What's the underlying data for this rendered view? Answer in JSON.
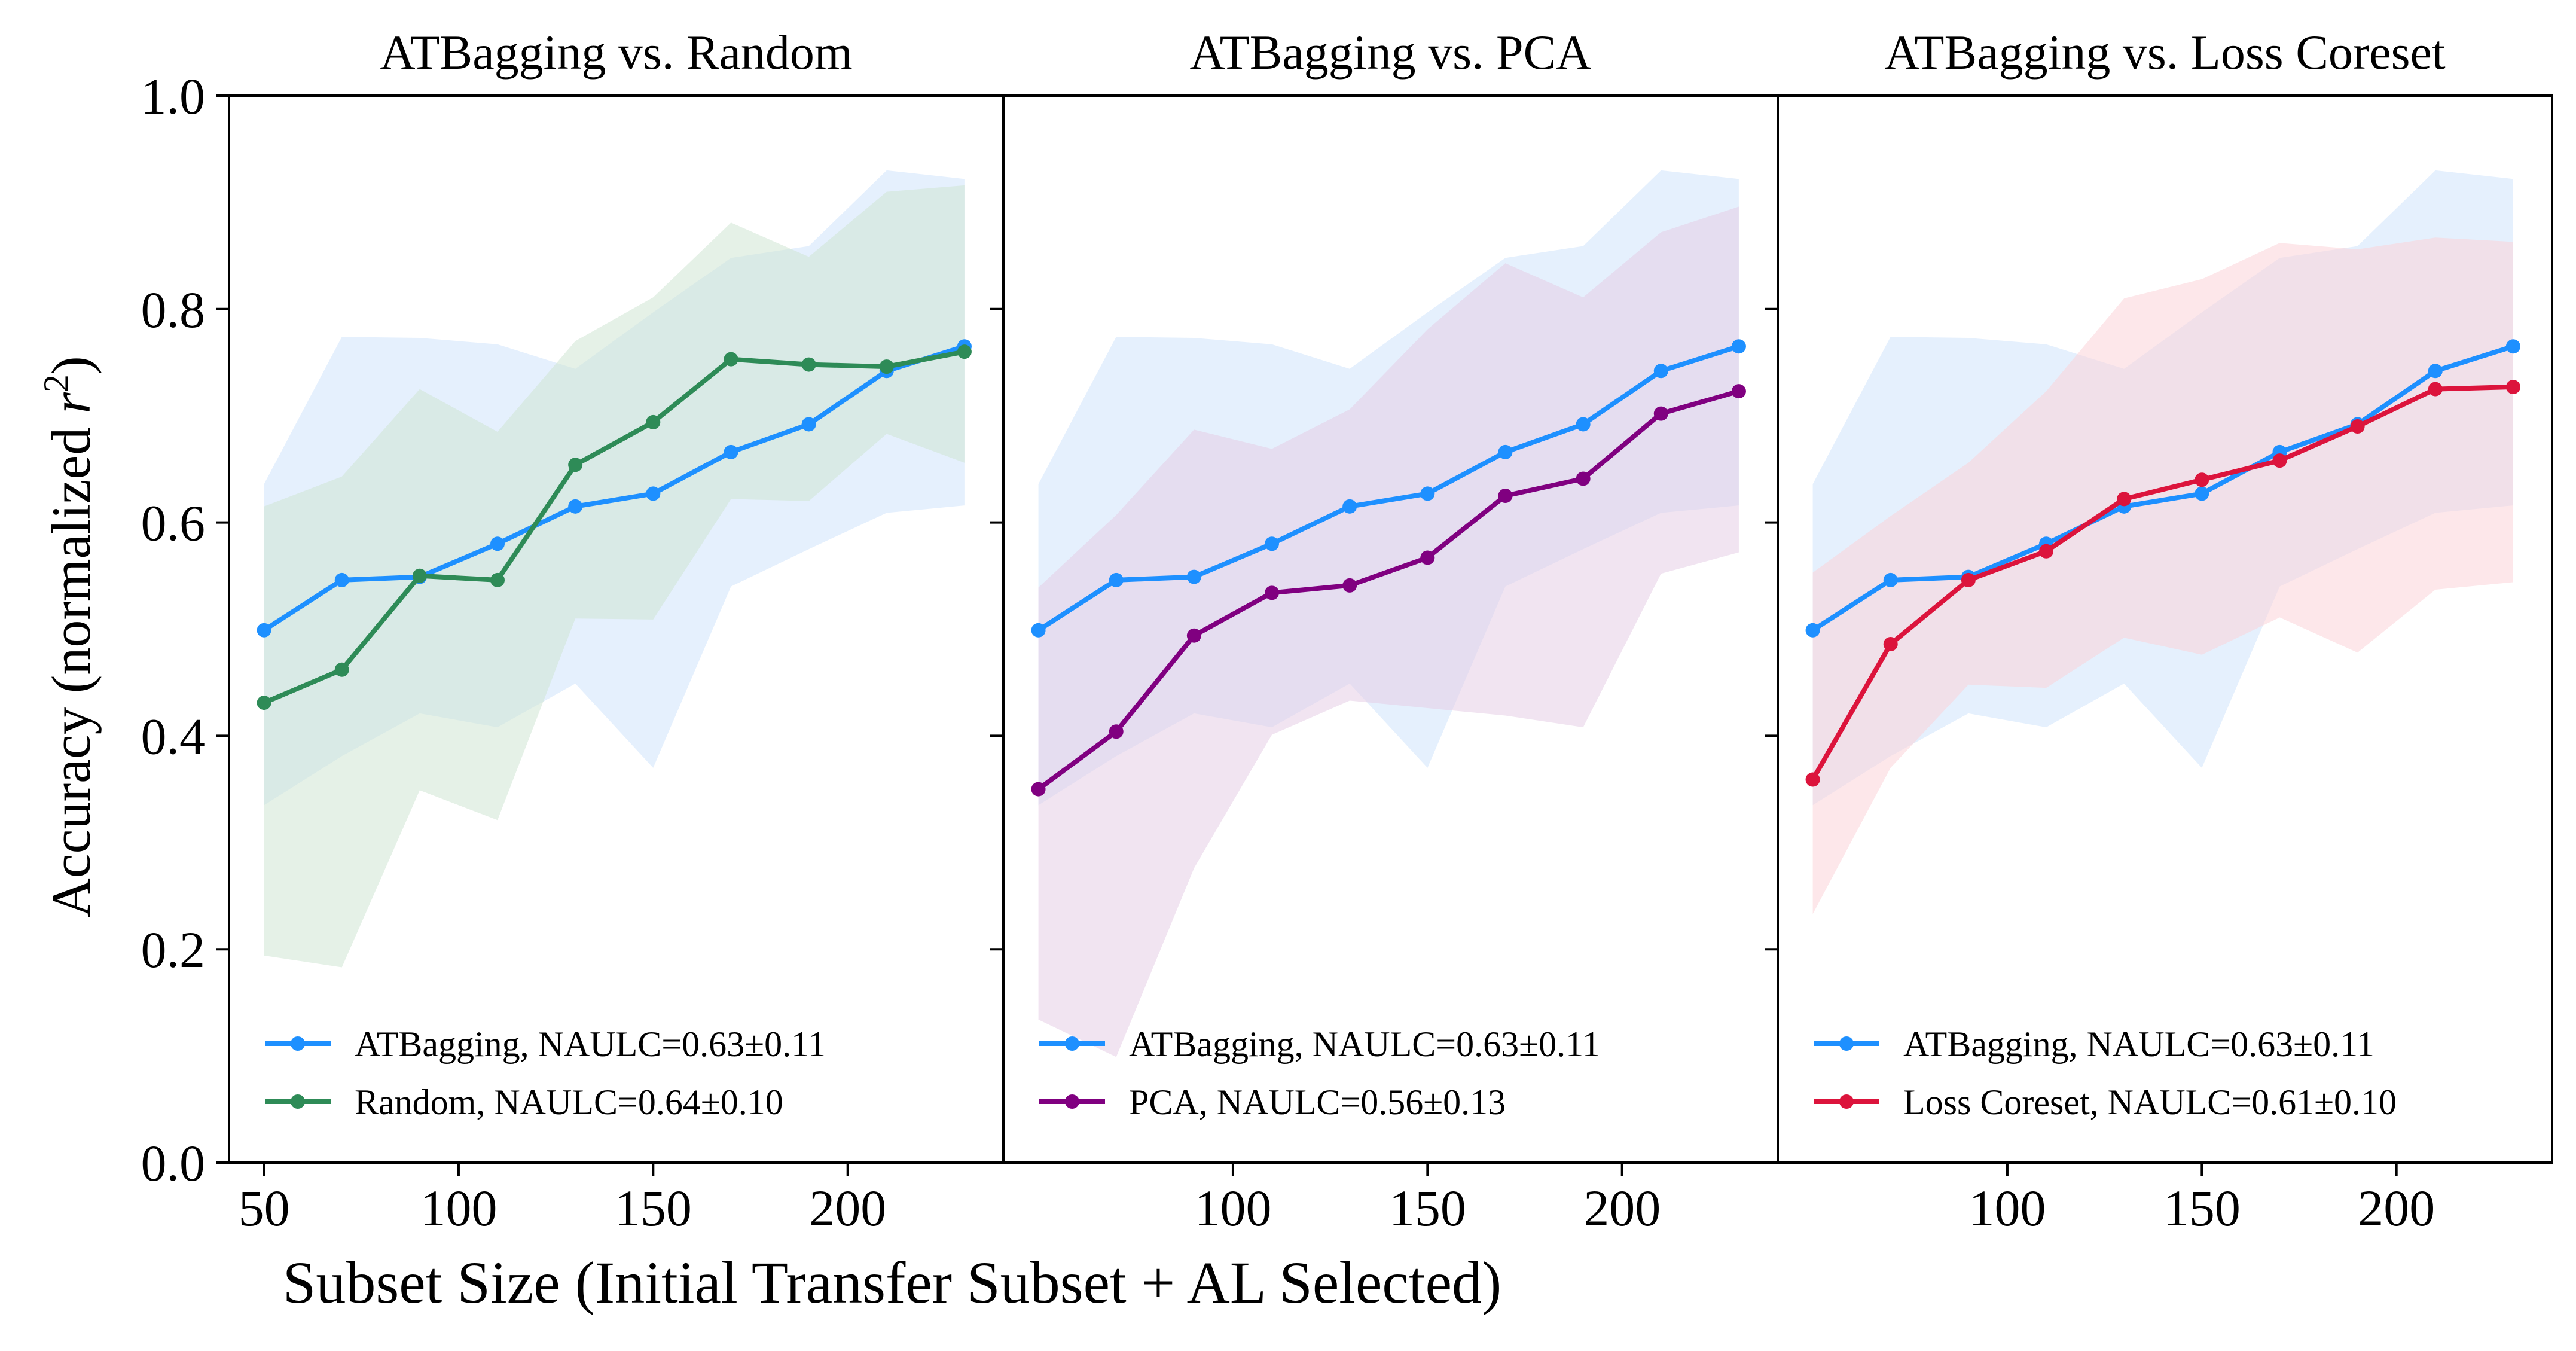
{
  "figure": {
    "ylabel_main": "Accuracy (normalized ",
    "ylabel_var": "r",
    "ylabel_sup": "2",
    "ylabel_end": ")",
    "xlabel": "Subset Size (Initial Transfer Subset + AL Selected)"
  },
  "chart_data": [
    {
      "type": "line",
      "title": "ATBagging vs. Random",
      "x": [
        50,
        70,
        90,
        110,
        130,
        150,
        170,
        190,
        210,
        230
      ],
      "xticks": [
        "50",
        "100",
        "150",
        "200"
      ],
      "xtick_values": [
        50,
        100,
        150,
        200
      ],
      "yticks": [
        "0.0",
        "0.2",
        "0.4",
        "0.6",
        "0.8",
        "1.0"
      ],
      "ylim": [
        0,
        1
      ],
      "xlim": [
        41,
        240
      ],
      "series": [
        {
          "name": "ATBagging",
          "legend": "ATBagging, NAULC=0.63±0.11",
          "color": "#1e90ff",
          "band_color": "#cfe3fb",
          "values": [
            0.499,
            0.546,
            0.549,
            0.58,
            0.615,
            0.627,
            0.666,
            0.692,
            0.742,
            0.765
          ],
          "lower": [
            0.335,
            0.381,
            0.421,
            0.408,
            0.449,
            0.37,
            0.54,
            0.575,
            0.609,
            0.616
          ],
          "upper": [
            0.636,
            0.774,
            0.773,
            0.767,
            0.744,
            0.797,
            0.848,
            0.859,
            0.93,
            0.922
          ]
        },
        {
          "name": "Random",
          "legend": "Random, NAULC=0.64±0.10",
          "color": "#2e8b57",
          "band_color": "#cfe6d4",
          "values": [
            0.431,
            0.462,
            0.55,
            0.546,
            0.654,
            0.694,
            0.753,
            0.748,
            0.746,
            0.76
          ],
          "lower": [
            0.194,
            0.183,
            0.349,
            0.321,
            0.51,
            0.509,
            0.622,
            0.62,
            0.683,
            0.656
          ],
          "upper": [
            0.615,
            0.643,
            0.725,
            0.685,
            0.77,
            0.811,
            0.881,
            0.849,
            0.91,
            0.916
          ]
        }
      ]
    },
    {
      "type": "line",
      "title": "ATBagging vs. PCA",
      "x": [
        50,
        70,
        90,
        110,
        130,
        150,
        170,
        190,
        210,
        230
      ],
      "xticks": [
        "100",
        "150",
        "200"
      ],
      "xtick_values": [
        100,
        150,
        200
      ],
      "ylim": [
        0,
        1
      ],
      "xlim": [
        41,
        240
      ],
      "series": [
        {
          "name": "ATBagging",
          "legend": "ATBagging, NAULC=0.63±0.11",
          "color": "#1e90ff",
          "band_color": "#cfe3fb",
          "values": [
            0.499,
            0.546,
            0.549,
            0.58,
            0.615,
            0.627,
            0.666,
            0.692,
            0.742,
            0.765
          ],
          "lower": [
            0.335,
            0.381,
            0.421,
            0.408,
            0.449,
            0.37,
            0.54,
            0.575,
            0.609,
            0.616
          ],
          "upper": [
            0.636,
            0.774,
            0.773,
            0.767,
            0.744,
            0.797,
            0.848,
            0.859,
            0.93,
            0.922
          ]
        },
        {
          "name": "PCA",
          "legend": "PCA, NAULC=0.56±0.13",
          "color": "#800080",
          "band_color": "#e6cde6",
          "values": [
            0.35,
            0.404,
            0.494,
            0.534,
            0.541,
            0.567,
            0.625,
            0.641,
            0.702,
            0.723
          ],
          "lower": [
            0.134,
            0.099,
            0.276,
            0.401,
            0.433,
            0.426,
            0.419,
            0.408,
            0.552,
            0.572
          ],
          "upper": [
            0.539,
            0.607,
            0.687,
            0.669,
            0.706,
            0.781,
            0.843,
            0.811,
            0.872,
            0.896
          ]
        }
      ]
    },
    {
      "type": "line",
      "title": "ATBagging vs. Loss Coreset",
      "x": [
        50,
        70,
        90,
        110,
        130,
        150,
        170,
        190,
        210,
        230
      ],
      "xticks": [
        "100",
        "150",
        "200"
      ],
      "xtick_values": [
        100,
        150,
        200
      ],
      "ylim": [
        0,
        1
      ],
      "xlim": [
        41,
        240
      ],
      "series": [
        {
          "name": "ATBagging",
          "legend": "ATBagging, NAULC=0.63±0.11",
          "color": "#1e90ff",
          "band_color": "#cfe3fb",
          "values": [
            0.499,
            0.546,
            0.549,
            0.58,
            0.615,
            0.627,
            0.666,
            0.692,
            0.742,
            0.765
          ],
          "lower": [
            0.335,
            0.381,
            0.421,
            0.408,
            0.449,
            0.37,
            0.54,
            0.575,
            0.609,
            0.616
          ],
          "upper": [
            0.636,
            0.774,
            0.773,
            0.767,
            0.744,
            0.797,
            0.848,
            0.859,
            0.93,
            0.922
          ]
        },
        {
          "name": "Loss Coreset",
          "legend": "Loss Coreset, NAULC=0.61±0.10",
          "color": "#dc143c",
          "band_color": "#fbd3d8",
          "values": [
            0.359,
            0.486,
            0.546,
            0.573,
            0.622,
            0.64,
            0.658,
            0.69,
            0.725,
            0.727
          ],
          "lower": [
            0.233,
            0.37,
            0.448,
            0.445,
            0.492,
            0.476,
            0.511,
            0.478,
            0.537,
            0.544
          ],
          "upper": [
            0.553,
            0.606,
            0.656,
            0.723,
            0.81,
            0.828,
            0.862,
            0.856,
            0.867,
            0.863
          ]
        }
      ]
    }
  ]
}
